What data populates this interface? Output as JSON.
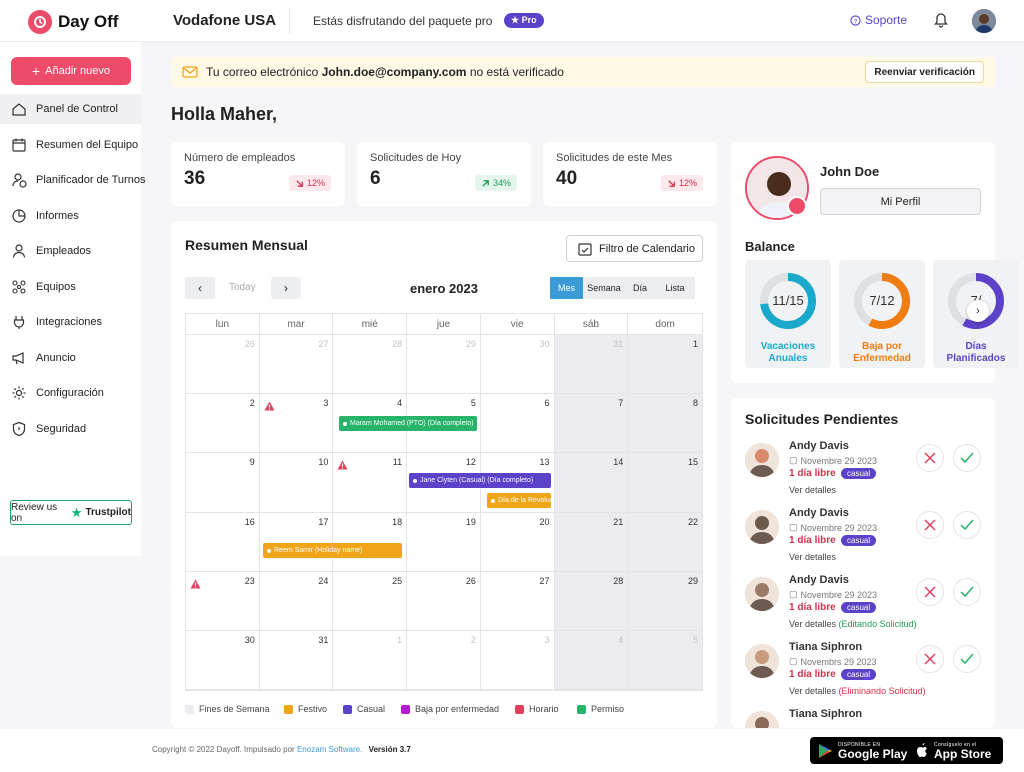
{
  "app": {
    "name": "Day Off",
    "company": "Vodafone USA",
    "package_text": "Estás disfrutando del paquete pro",
    "pro_badge": "Pro"
  },
  "header": {
    "support": "Soporte"
  },
  "sidebar": {
    "add_button": "Añadir nuevo",
    "items": [
      {
        "label": "Panel de Control",
        "icon": "home-icon"
      },
      {
        "label": "Resumen del Equipo",
        "icon": "calendar-icon"
      },
      {
        "label": "Planificador de Turnos",
        "icon": "user-clock-icon"
      },
      {
        "label": "Informes",
        "icon": "pie-chart-icon"
      },
      {
        "label": "Empleados",
        "icon": "user-icon"
      },
      {
        "label": "Equipos",
        "icon": "team-icon"
      },
      {
        "label": "Integraciones",
        "icon": "plug-icon"
      },
      {
        "label": "Anuncio",
        "icon": "megaphone-icon"
      },
      {
        "label": "Configuración",
        "icon": "gear-icon"
      },
      {
        "label": "Seguridad",
        "icon": "shield-icon"
      }
    ],
    "trustpilot": {
      "prefix": "Review us on",
      "brand": "Trustpilot"
    }
  },
  "banner": {
    "prefix": "Tu correo electrónico",
    "email": "John.doe@company.com",
    "suffix": "no está verificado",
    "button": "Reenviar verificación"
  },
  "greeting": "Holla Maher,",
  "stats": [
    {
      "label": "Número de empleados",
      "value": "36",
      "change": "12%",
      "trend": "down"
    },
    {
      "label": "Solicitudes de Hoy",
      "value": "6",
      "change": "34%",
      "trend": "up"
    },
    {
      "label": "Solicitudes de este Mes",
      "value": "40",
      "change": "12%",
      "trend": "down"
    }
  ],
  "calendar": {
    "title": "Resumen Mensual",
    "filter": "Filtro de Calendario",
    "today": "Today",
    "month": "enero 2023",
    "views": [
      {
        "label": "Mes",
        "active": true
      },
      {
        "label": "Semana",
        "active": false
      },
      {
        "label": "Día",
        "active": false
      },
      {
        "label": "Lista",
        "active": false
      }
    ],
    "weekdays": [
      "lun",
      "mar",
      "mié",
      "jue",
      "vie",
      "sáb",
      "dom"
    ],
    "days": [
      {
        "n": "26",
        "other": true
      },
      {
        "n": "27",
        "other": true
      },
      {
        "n": "28",
        "other": true
      },
      {
        "n": "29",
        "other": true
      },
      {
        "n": "30",
        "other": true
      },
      {
        "n": "31",
        "other": true
      },
      {
        "n": "1"
      },
      {
        "n": "2"
      },
      {
        "n": "3",
        "warn": true
      },
      {
        "n": "4"
      },
      {
        "n": "5"
      },
      {
        "n": "6"
      },
      {
        "n": "7"
      },
      {
        "n": "8"
      },
      {
        "n": "9"
      },
      {
        "n": "10"
      },
      {
        "n": "11",
        "warn": true
      },
      {
        "n": "12"
      },
      {
        "n": "13"
      },
      {
        "n": "14"
      },
      {
        "n": "15"
      },
      {
        "n": "16"
      },
      {
        "n": "17"
      },
      {
        "n": "18"
      },
      {
        "n": "19"
      },
      {
        "n": "20"
      },
      {
        "n": "21"
      },
      {
        "n": "22"
      },
      {
        "n": "23",
        "warn": true
      },
      {
        "n": "24"
      },
      {
        "n": "25"
      },
      {
        "n": "26"
      },
      {
        "n": "27"
      },
      {
        "n": "28"
      },
      {
        "n": "29"
      },
      {
        "n": "30"
      },
      {
        "n": "31"
      },
      {
        "n": "1",
        "other": true
      },
      {
        "n": "2",
        "other": true
      },
      {
        "n": "3",
        "other": true
      },
      {
        "n": "4",
        "other": true
      },
      {
        "n": "5",
        "other": true
      }
    ],
    "events": [
      {
        "label": "Maram Mohamed (PTO) (Día completo)",
        "color": "#27b36a"
      },
      {
        "label": "Jane Clyten (Casual) (Día completo)",
        "color": "#5b42c8"
      },
      {
        "label": "Día de la Revolución",
        "color": "#f0a418"
      },
      {
        "label": "Reem Samir (Holiday name)",
        "color": "#f0a418"
      }
    ],
    "legend": [
      {
        "label": "Fines de Semana",
        "color": "#ececf0"
      },
      {
        "label": "Festivo",
        "color": "#f0a418"
      },
      {
        "label": "Casual",
        "color": "#5b42c8"
      },
      {
        "label": "Baja por enfermedad",
        "color": "#b51ccf"
      },
      {
        "label": "Horario",
        "color": "#e0405e"
      },
      {
        "label": "Permiso",
        "color": "#27b36a"
      }
    ]
  },
  "profile": {
    "name": "John Doe",
    "button": "Mi Perfil",
    "balance_title": "Balance"
  },
  "balances": [
    {
      "value": "11/15",
      "label1": "Vacaciones",
      "label2": "Anuales",
      "color": "#1aa9cc",
      "ratio": 0.73
    },
    {
      "value": "7/12",
      "label1": "Baja por",
      "label2": "Enfermedad",
      "color": "#f07d12",
      "ratio": 0.58
    },
    {
      "value": "7/",
      "label1": "Días",
      "label2": "Planificados",
      "color": "#5b42c8",
      "ratio": 0.58
    }
  ],
  "requests": {
    "title": "Solicitudes Pendientes",
    "items": [
      {
        "name": "Andy Davis",
        "date": "Novembre 29 2023",
        "days": "1 día libre",
        "type": "casual",
        "link": "Ver detalles",
        "note": "",
        "note_color": ""
      },
      {
        "name": "Andy Davis",
        "date": "Novembre 29 2023",
        "days": "1 día libre",
        "type": "casual",
        "link": "Ver detalles",
        "note": "",
        "note_color": ""
      },
      {
        "name": "Andy Davis",
        "date": "Novembre 29 2023",
        "days": "1 día libre",
        "type": "casual",
        "link": "Ver detalles",
        "note": "(Editando Solicitud)",
        "note_color": "#1f9d55"
      },
      {
        "name": "Tiana Siphron",
        "date": "Novembrs 29 2023",
        "days": "1 día libre",
        "type": "casual",
        "link": "Ver detalles",
        "note": "(Eliminando Solicitud)",
        "note_color": "#d3324d"
      },
      {
        "name": "Tiana Siphron",
        "date": "",
        "days": "",
        "type": "",
        "link": "",
        "note": "",
        "note_color": ""
      }
    ]
  },
  "footer": {
    "copyright": "Copyright © 2022 Dayoff. Impulsado por",
    "brand": "Enozam Software.",
    "version": "Versión 3.7",
    "google_small": "DISPONIBLE EN",
    "google_big": "Google Play",
    "apple_small": "Consíguelo en el",
    "apple_big": "App Store"
  }
}
